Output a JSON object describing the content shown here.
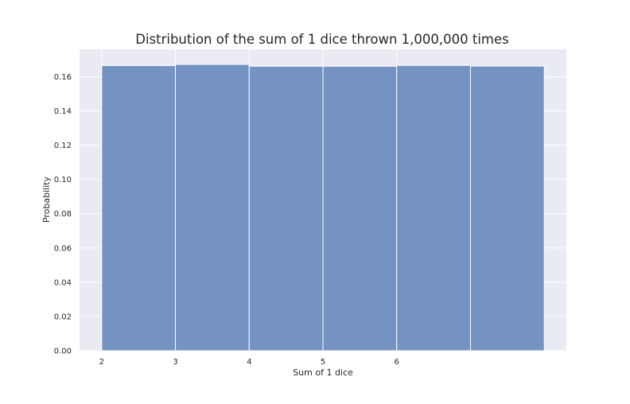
{
  "chart_data": {
    "type": "bar",
    "title": "Distribution of the sum of 1 dice thrown 1,000,000 times",
    "xlabel": "Sum of 1 dice",
    "ylabel": "Probability",
    "bins": [
      {
        "x0": 2,
        "x1": 3,
        "value": 0.1665
      },
      {
        "x0": 3,
        "x1": 4,
        "value": 0.1672
      },
      {
        "x0": 4,
        "x1": 5,
        "value": 0.1661
      },
      {
        "x0": 5,
        "x1": 6,
        "value": 0.1661
      },
      {
        "x0": 6,
        "x1": 7,
        "value": 0.1666
      },
      {
        "x0": 7,
        "x1": 8,
        "value": 0.1662
      }
    ],
    "xticks": [
      "2",
      "3",
      "4",
      "5",
      "6"
    ],
    "yticks": [
      "0.00",
      "0.02",
      "0.04",
      "0.06",
      "0.08",
      "0.10",
      "0.12",
      "0.14",
      "0.16"
    ],
    "xlim": [
      1.7,
      8.3
    ],
    "ylim": [
      0,
      0.176
    ],
    "grid": true,
    "legend": "none",
    "colors": {
      "background": "#eaeaf2",
      "bar": "#7492c2",
      "grid": "#ffffff",
      "text": "#262626"
    }
  }
}
